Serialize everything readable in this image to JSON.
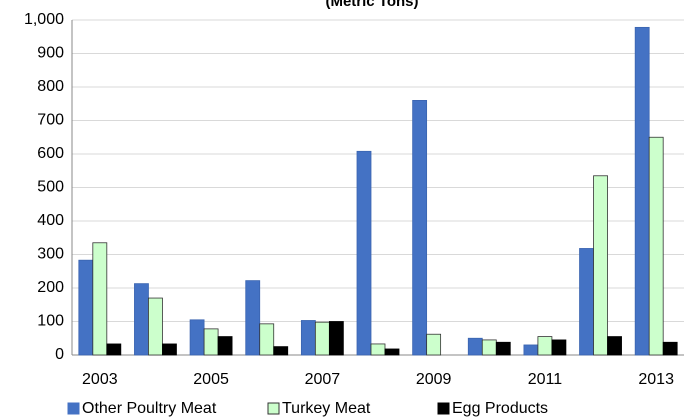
{
  "chart_data": {
    "type": "bar",
    "title": "(Metric Tons)",
    "categories": [
      "2003",
      null,
      "2005",
      null,
      "2007",
      null,
      "2009",
      null,
      "2011",
      null,
      "2013"
    ],
    "series": [
      {
        "name": "Other Poultry Meat",
        "color": "#4472c4",
        "values": [
          283,
          213,
          105,
          222,
          103,
          608,
          760,
          50,
          30,
          318,
          978
        ]
      },
      {
        "name": "Turkey Meat",
        "color": "#ccffcc",
        "values": [
          335,
          170,
          78,
          93,
          98,
          33,
          62,
          45,
          55,
          535,
          650
        ]
      },
      {
        "name": "Egg Products",
        "color": "#000000",
        "values": [
          33,
          33,
          55,
          25,
          100,
          18,
          0,
          38,
          45,
          55,
          38
        ]
      }
    ],
    "ylim": [
      0,
      1000
    ],
    "yticks": [
      0,
      100,
      200,
      300,
      400,
      500,
      600,
      700,
      800,
      900,
      {
        "value": 1000,
        "label": "1,000"
      }
    ],
    "grid": true
  }
}
